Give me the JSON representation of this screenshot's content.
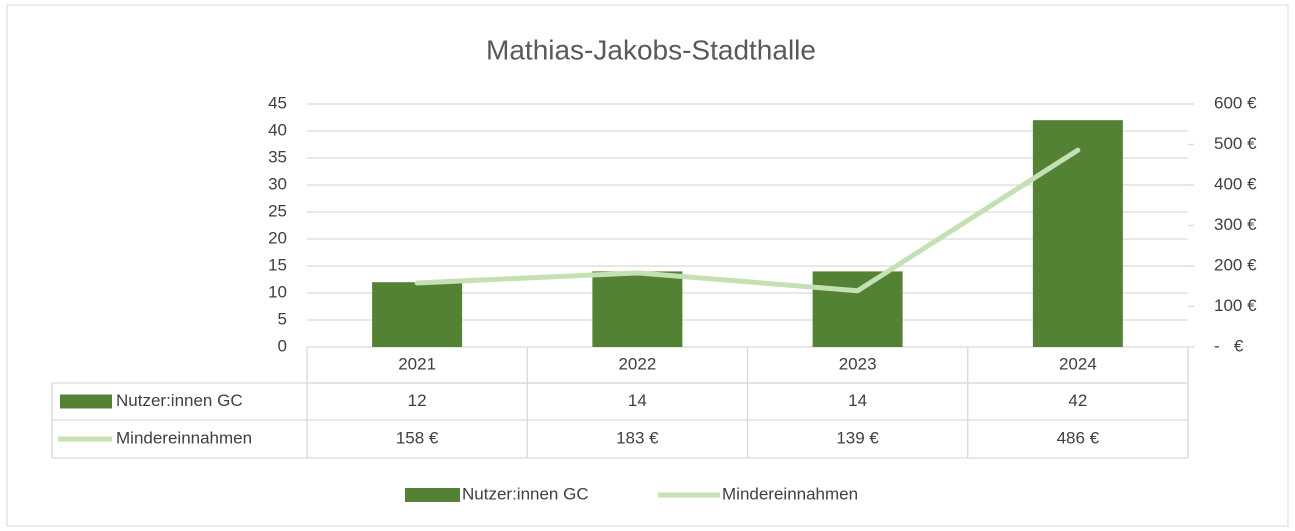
{
  "chart_data": {
    "type": "bar",
    "title": "Mathias-Jakobs-Stadthalle",
    "categories": [
      "2021",
      "2022",
      "2023",
      "2024"
    ],
    "series": [
      {
        "name": "Nutzer:innen GC",
        "type": "bar",
        "color": "#548235",
        "values": [
          12,
          14,
          14,
          42
        ]
      },
      {
        "name": "Mindereinnahmen",
        "type": "line",
        "axis": "y2",
        "color": "#c5e0b4",
        "values": [
          158,
          183,
          139,
          486
        ],
        "value_labels": [
          "158 €",
          "183 €",
          "139 €",
          "486 €"
        ]
      }
    ],
    "ylim": [
      0,
      45
    ],
    "yticks": [
      0,
      5,
      10,
      15,
      20,
      25,
      30,
      35,
      40,
      45
    ],
    "y2lim": [
      0,
      600
    ],
    "y2ticks": [
      {
        "value": 0,
        "label": "-   €"
      },
      {
        "value": 100,
        "label": "100 €"
      },
      {
        "value": 200,
        "label": "200 €"
      },
      {
        "value": 300,
        "label": "300 €"
      },
      {
        "value": 400,
        "label": "400 €"
      },
      {
        "value": 500,
        "label": "500 €"
      },
      {
        "value": 600,
        "label": "600 €"
      }
    ],
    "grid": true,
    "legend": "bottom",
    "data_table": true
  }
}
